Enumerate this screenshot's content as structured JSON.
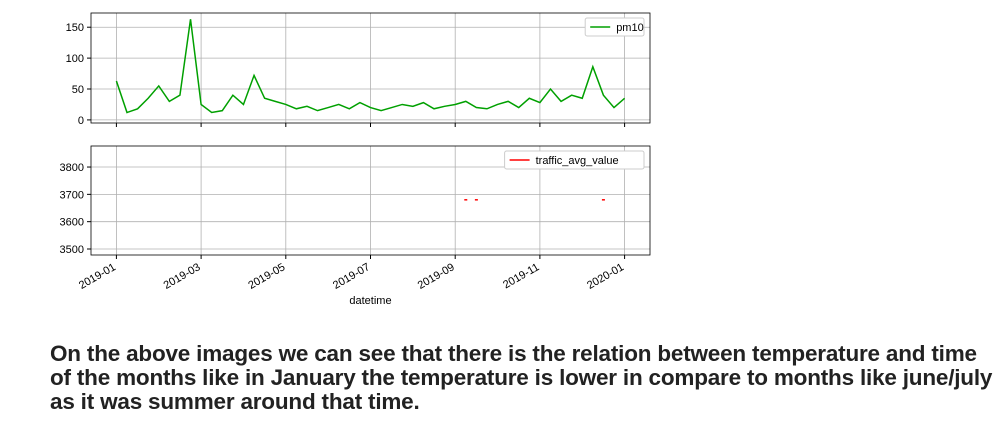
{
  "chart_data": [
    {
      "type": "line",
      "series": [
        {
          "name": "pm10",
          "color": "#00a000",
          "x": [
            0,
            0.25,
            0.5,
            0.75,
            1,
            1.25,
            1.5,
            1.75,
            2,
            2.25,
            2.5,
            2.75,
            3,
            3.25,
            3.5,
            3.75,
            4,
            4.25,
            4.5,
            4.75,
            5,
            5.25,
            5.5,
            5.75,
            6,
            6.25,
            6.5,
            6.75,
            7,
            7.25,
            7.5,
            7.75,
            8,
            8.25,
            8.5,
            8.75,
            9,
            9.25,
            9.5,
            9.75,
            10,
            10.25,
            10.5,
            10.75,
            11,
            11.25,
            11.5,
            11.75,
            12
          ],
          "values": [
            63,
            12,
            18,
            35,
            55,
            30,
            40,
            163,
            25,
            12,
            15,
            40,
            25,
            72,
            35,
            30,
            25,
            18,
            22,
            15,
            20,
            25,
            18,
            28,
            20,
            15,
            20,
            25,
            22,
            28,
            18,
            22,
            25,
            30,
            20,
            18,
            25,
            30,
            20,
            35,
            28,
            50,
            30,
            40,
            35,
            86,
            40,
            20,
            35
          ]
        }
      ],
      "xlim": [
        -0.6,
        12.6
      ],
      "xticks": [
        0,
        2,
        4,
        6,
        8,
        10,
        12
      ],
      "ylim": [
        -5,
        173
      ],
      "yticks": [
        0,
        50,
        100,
        150
      ],
      "grid": true,
      "legend": "upper right"
    },
    {
      "type": "scatter",
      "x_label": "datetime",
      "series": [
        {
          "name": "traffic_avg_value",
          "color": "#ff0000",
          "x": [
            8.25,
            8.5,
            11.5
          ],
          "values": [
            3680,
            3680,
            3680
          ]
        }
      ],
      "xlim": [
        -0.6,
        12.6
      ],
      "xticks": [
        {
          "value": 0,
          "label": "2019-01"
        },
        {
          "value": 2,
          "label": "2019-03"
        },
        {
          "value": 4,
          "label": "2019-05"
        },
        {
          "value": 6,
          "label": "2019-07"
        },
        {
          "value": 8,
          "label": "2019-09"
        },
        {
          "value": 10,
          "label": "2019-11"
        },
        {
          "value": 12,
          "label": "2020-01"
        }
      ],
      "ylim": [
        3478,
        3877
      ],
      "yticks": [
        3500,
        3600,
        3700,
        3800
      ],
      "grid": true,
      "legend": "upper right"
    }
  ],
  "text": "On the above images we can see that there is the relation between temperature and time of the months like in January the temperature is lower in compare to months like june/july as it was summer around that time."
}
